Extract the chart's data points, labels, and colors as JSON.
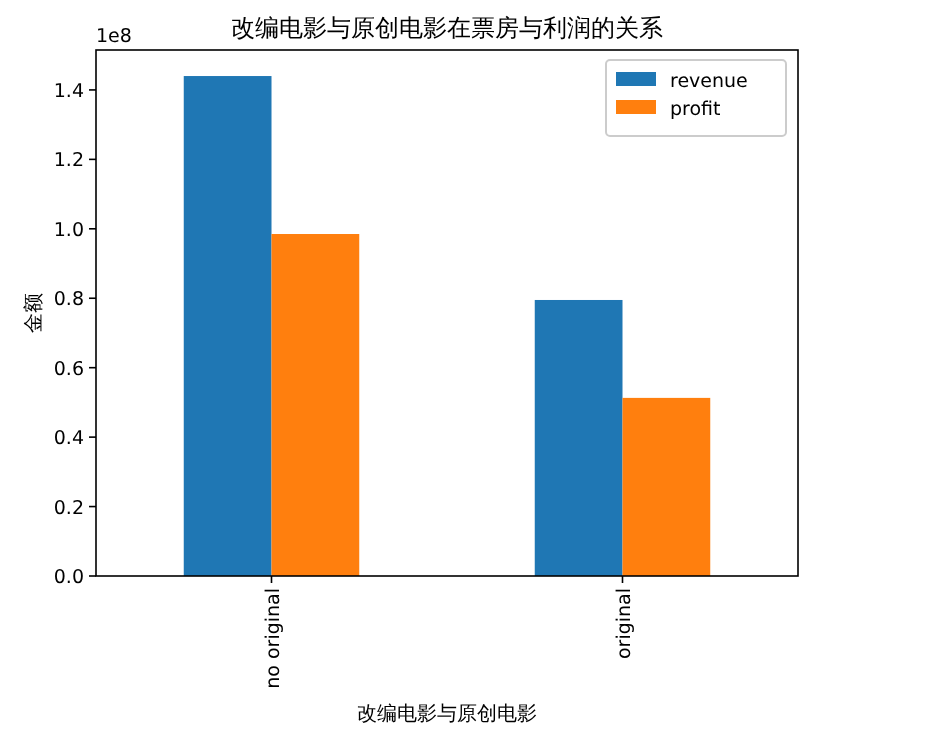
{
  "chart_data": {
    "type": "bar",
    "title": "改编电影与原创电影在票房与利润的关系",
    "xlabel": "改编电影与原创电影",
    "ylabel": "金额",
    "categories": [
      "no original",
      "original"
    ],
    "series": [
      {
        "name": "revenue",
        "color": "#1f77b4",
        "values": [
          1.44,
          0.795
        ]
      },
      {
        "name": "profit",
        "color": "#ff7f0e",
        "values": [
          0.985,
          0.513
        ]
      }
    ],
    "ylim": [
      0,
      1.515
    ],
    "yticks": [
      {
        "value": 0,
        "label": "0.0"
      },
      0.2,
      0.4,
      0.6,
      0.8,
      {
        "value": 1,
        "label": "1.0"
      },
      1.2,
      1.4
    ],
    "annotations": [
      "1e8"
    ],
    "legend": "top right",
    "grid": false
  }
}
